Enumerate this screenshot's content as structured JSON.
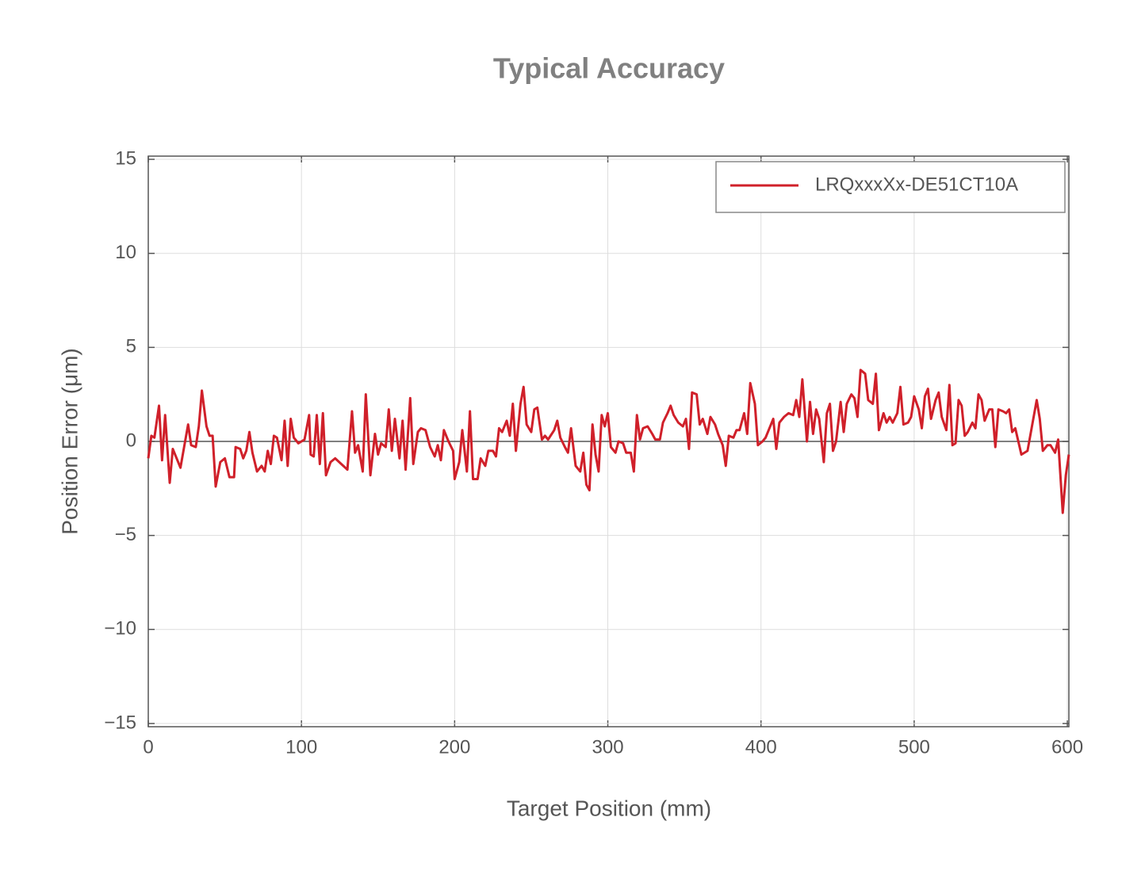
{
  "chart_data": {
    "type": "line",
    "title": "Typical Accuracy",
    "x_label": "Target Position (mm)",
    "y_label": "Position Error (μm)",
    "x": [
      0,
      2,
      4,
      7,
      9,
      11,
      14,
      16,
      21,
      26,
      28,
      31,
      33,
      35,
      38,
      40,
      42,
      44,
      47,
      50,
      53,
      56,
      57,
      60,
      62,
      64,
      66,
      68,
      71,
      74,
      76,
      78,
      80,
      82,
      84,
      87,
      89,
      91,
      93,
      95,
      98,
      102,
      105,
      106,
      108,
      110,
      112,
      114,
      116,
      119,
      122,
      126,
      130,
      133,
      135,
      137,
      140,
      142,
      145,
      148,
      150,
      152,
      155,
      157,
      159,
      161,
      164,
      166,
      168,
      171,
      173,
      176,
      178,
      181,
      184,
      187,
      189,
      191,
      193,
      196,
      199,
      200,
      203,
      205,
      208,
      210,
      212,
      215,
      217,
      220,
      222,
      225,
      227,
      229,
      231,
      234,
      236,
      238,
      240,
      243,
      245,
      247,
      250,
      252,
      254,
      257,
      259,
      261,
      265,
      267,
      269,
      272,
      274,
      276,
      279,
      282,
      284,
      286,
      288,
      290,
      292,
      294,
      296,
      298,
      300,
      302,
      305,
      307,
      310,
      312,
      315,
      317,
      319,
      321,
      323,
      326,
      329,
      331,
      334,
      336,
      339,
      341,
      343,
      346,
      349,
      351,
      353,
      355,
      358,
      360,
      362,
      365,
      367,
      370,
      372,
      375,
      377,
      379,
      382,
      384,
      386,
      389,
      391,
      393,
      396,
      398,
      401,
      403,
      405,
      408,
      410,
      412,
      415,
      418,
      421,
      423,
      425,
      427,
      430,
      432,
      434,
      436,
      438,
      441,
      443,
      445,
      447,
      449,
      452,
      454,
      456,
      459,
      461,
      463,
      465,
      468,
      470,
      473,
      475,
      477,
      480,
      482,
      484,
      486,
      489,
      491,
      493,
      496,
      498,
      500,
      503,
      505,
      507,
      509,
      511,
      514,
      516,
      518,
      521,
      523,
      525,
      527,
      529,
      531,
      533,
      535,
      538,
      540,
      542,
      544,
      546,
      549,
      551,
      553,
      555,
      558,
      560,
      562,
      564,
      566,
      570,
      574,
      580,
      582,
      584,
      587,
      589,
      592,
      594,
      597,
      599,
      601
    ],
    "series": [
      {
        "name": "LRQxxxXx-DE51CT10A",
        "color": "#d0202a",
        "values": [
          -0.9,
          0.3,
          0.2,
          1.9,
          -1.0,
          1.4,
          -2.2,
          -0.4,
          -1.4,
          0.9,
          -0.2,
          -0.3,
          0.8,
          2.7,
          0.8,
          0.3,
          0.3,
          -2.4,
          -1.1,
          -0.9,
          -1.9,
          -1.9,
          -0.3,
          -0.4,
          -0.9,
          -0.5,
          0.5,
          -0.6,
          -1.6,
          -1.3,
          -1.6,
          -0.5,
          -1.2,
          0.3,
          0.2,
          -1.0,
          1.1,
          -1.3,
          1.2,
          0.2,
          -0.1,
          0.1,
          1.4,
          -0.7,
          -0.8,
          1.4,
          -1.2,
          1.5,
          -1.8,
          -1.1,
          -0.9,
          -1.2,
          -1.5,
          1.6,
          -0.6,
          -0.2,
          -1.6,
          2.5,
          -1.8,
          0.4,
          -0.7,
          -0.1,
          -0.3,
          1.7,
          -0.5,
          1.2,
          -0.9,
          1.1,
          -1.5,
          2.3,
          -1.2,
          0.5,
          0.7,
          0.6,
          -0.3,
          -0.8,
          -0.2,
          -1.0,
          0.6,
          0,
          -0.5,
          -2.0,
          -1.1,
          0.6,
          -1.6,
          1.6,
          -2.0,
          -2.0,
          -0.9,
          -1.3,
          -0.5,
          -0.5,
          -0.8,
          0.7,
          0.5,
          1.1,
          0.3,
          2.0,
          -0.5,
          2.0,
          2.9,
          0.9,
          0.5,
          1.7,
          1.8,
          0.1,
          0.3,
          0.1,
          0.6,
          1.1,
          0.2,
          -0.3,
          -0.6,
          0.7,
          -1.3,
          -1.6,
          -0.6,
          -2.3,
          -2.6,
          0.9,
          -0.7,
          -1.6,
          1.4,
          0.8,
          1.5,
          -0.3,
          -0.6,
          0,
          -0.1,
          -0.6,
          -0.6,
          -1.6,
          1.4,
          0.1,
          0.7,
          0.8,
          0.4,
          0.1,
          0.1,
          1.0,
          1.5,
          1.9,
          1.4,
          1.0,
          0.8,
          1.2,
          -0.4,
          2.6,
          2.5,
          0.9,
          1.2,
          0.4,
          1.3,
          0.9,
          0.4,
          -0.2,
          -1.3,
          0.3,
          0.2,
          0.6,
          0.6,
          1.5,
          0.4,
          3.1,
          2.0,
          -0.2,
          0,
          0.2,
          0.6,
          1.2,
          -0.4,
          1.0,
          1.3,
          1.5,
          1.4,
          2.2,
          1.3,
          3.3,
          0,
          2.1,
          0.4,
          1.7,
          1.2,
          -1.1,
          1.5,
          2.0,
          -0.5,
          0,
          2.1,
          0.5,
          2.0,
          2.5,
          2.3,
          1.3,
          3.8,
          3.6,
          2.2,
          2.0,
          3.6,
          0.6,
          1.5,
          1.0,
          1.3,
          1.0,
          1.5,
          2.9,
          0.9,
          1.0,
          1.3,
          2.4,
          1.7,
          0.7,
          2.4,
          2.8,
          1.2,
          2.2,
          2.6,
          1.3,
          0.6,
          3.0,
          -0.2,
          -0.1,
          2.2,
          1.9,
          0.3,
          0.5,
          1.0,
          0.7,
          2.5,
          2.2,
          1.1,
          1.7,
          1.7,
          -0.3,
          1.7,
          1.6,
          1.5,
          1.7,
          0.5,
          0.7,
          -0.7,
          -0.5,
          2.2,
          1.2,
          -0.5,
          -0.2,
          -0.2,
          -0.6,
          0.1,
          -3.8,
          -1.8,
          -0.7
        ]
      }
    ],
    "xlim": [
      0,
      601
    ],
    "ylim": [
      -15.17,
      15.17
    ],
    "xticks": [
      0,
      100,
      200,
      300,
      400,
      500,
      600
    ],
    "yticks": [
      {
        "value": -15,
        "label": "−15"
      },
      {
        "value": -10,
        "label": "−10"
      },
      {
        "value": -5,
        "label": "−5"
      },
      0,
      5,
      10,
      15
    ],
    "grid": true,
    "legend": "upper right"
  }
}
